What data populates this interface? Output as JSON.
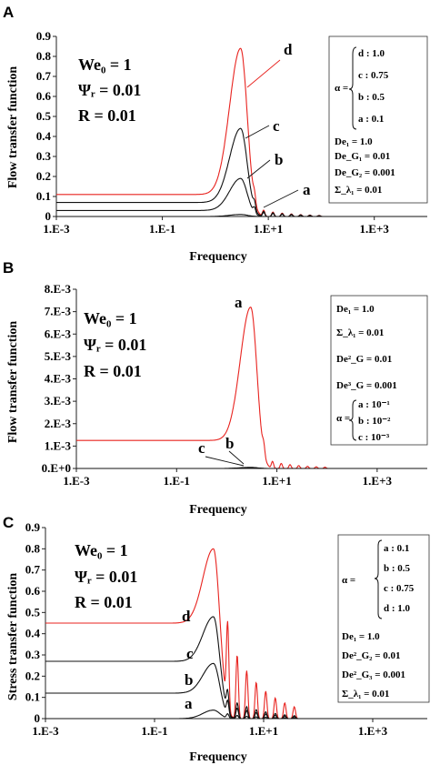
{
  "chart_data": [
    {
      "panel": "A",
      "type": "line",
      "xlabel": "Frequency",
      "ylabel": "Flow transfer function",
      "xscale": "log",
      "xlim": [
        0.001,
        10000
      ],
      "ylim": [
        0,
        0.9
      ],
      "xticks": [
        "1.E-3",
        "1.E-1",
        "1.E+1",
        "1.E+3"
      ],
      "yticks": [
        "0",
        "0.1",
        "0.2",
        "0.3",
        "0.4",
        "0.5",
        "0.6",
        "0.7",
        "0.8",
        "0.9"
      ],
      "params_left": [
        "We₀ = 1",
        "Ψᵣ = 0.01",
        "R = 0.01"
      ],
      "alpha_label": "α =",
      "alpha_items": [
        "d : 1.0",
        "c : 0.75",
        "b : 0.5",
        "a : 0.1"
      ],
      "params_right": [
        "De₁ = 1.0",
        "De_G₁ = 0.01",
        "De_G₂ = 0.001",
        "Σ_λ₁ = 0.01"
      ],
      "series": [
        {
          "label": "d",
          "color": "#e8231f",
          "baseline": 0.11,
          "peak": 0.84,
          "peak_x": 3.0,
          "width": 0.14,
          "ripple": 0.06
        },
        {
          "label": "c",
          "color": "#111111",
          "baseline": 0.07,
          "peak": 0.44,
          "peak_x": 3.0,
          "width": 0.14,
          "ripple": 0.05
        },
        {
          "label": "b",
          "color": "#111111",
          "baseline": 0.03,
          "peak": 0.19,
          "peak_x": 3.0,
          "width": 0.14,
          "ripple": 0.04
        },
        {
          "label": "a",
          "color": "#111111",
          "baseline": 0.0,
          "peak": 0.01,
          "peak_x": 3.0,
          "width": 0.14,
          "ripple": 0.0
        }
      ]
    },
    {
      "panel": "B",
      "type": "line",
      "xlabel": "Frequency",
      "ylabel": "Flow transfer function",
      "xscale": "log",
      "xlim": [
        0.001,
        10000
      ],
      "ylim": [
        0,
        0.008
      ],
      "xticks": [
        "1.E-3",
        "1.E-1",
        "1.E+1",
        "1.E+3"
      ],
      "yticks": [
        "0.E+0",
        "1.E-3",
        "2.E-3",
        "3.E-3",
        "4.E-3",
        "5.E-3",
        "6.E-3",
        "7.E-3",
        "8.E-3"
      ],
      "params_left": [
        "We₀ = 1",
        "Ψᵣ = 0.01",
        "R = 0.01"
      ],
      "params_right": [
        "De₁ = 1.0",
        "Σ_λ₁ = 0.01",
        "De²_G = 0.01",
        "De³_G = 0.001"
      ],
      "alpha_label": "α =",
      "alpha_items": [
        "a : 10⁻¹",
        "b : 10⁻²",
        "c : 10⁻³"
      ],
      "series": [
        {
          "label": "a",
          "color": "#e8231f",
          "baseline": 0.00125,
          "peak": 0.0072,
          "peak_x": 3.0,
          "width": 0.14,
          "ripple": 0.0006
        },
        {
          "label": "b",
          "color": "#111111",
          "baseline": 0.0,
          "peak": 5e-05,
          "peak_x": 3.0,
          "width": 0.14,
          "ripple": 0.0
        },
        {
          "label": "c",
          "color": "#111111",
          "baseline": 0.0,
          "peak": 2e-05,
          "peak_x": 3.0,
          "width": 0.14,
          "ripple": 0.0
        }
      ]
    },
    {
      "panel": "C",
      "type": "line",
      "xlabel": "Frequency",
      "ylabel": "Stress transfer function",
      "xscale": "log",
      "xlim": [
        0.001,
        10000
      ],
      "ylim": [
        0,
        0.9
      ],
      "xticks": [
        "1.E-3",
        "1.E-1",
        "1.E+1",
        "1.E+3"
      ],
      "yticks": [
        "0",
        "0.1",
        "0.2",
        "0.3",
        "0.4",
        "0.5",
        "0.6",
        "0.7",
        "0.8",
        "0.9"
      ],
      "params_left": [
        "We₀ = 1",
        "Ψᵣ = 0.01",
        "R = 0.01"
      ],
      "alpha_label": "α =",
      "alpha_items": [
        "a : 0.1",
        "b : 0.5",
        "c : 0.75",
        "d : 1.0"
      ],
      "params_right": [
        "De₁ = 1.0",
        "De²_G₂ = 0.01",
        "De²_G₃ = 0.001",
        "Σ_λ₁ = 0.01"
      ],
      "series": [
        {
          "label": "d",
          "color": "#e8231f",
          "baseline": 0.45,
          "peak": 0.8,
          "peak_x": 1.2,
          "width": 0.13,
          "ripple": 0.6
        },
        {
          "label": "c",
          "color": "#111111",
          "baseline": 0.27,
          "peak": 0.48,
          "peak_x": 1.2,
          "width": 0.13,
          "ripple": 0.15
        },
        {
          "label": "b",
          "color": "#111111",
          "baseline": 0.12,
          "peak": 0.26,
          "peak_x": 1.2,
          "width": 0.13,
          "ripple": 0.1
        },
        {
          "label": "a",
          "color": "#111111",
          "baseline": 0.0,
          "peak": 0.04,
          "peak_x": 1.2,
          "width": 0.13,
          "ripple": 0.03
        }
      ]
    }
  ]
}
